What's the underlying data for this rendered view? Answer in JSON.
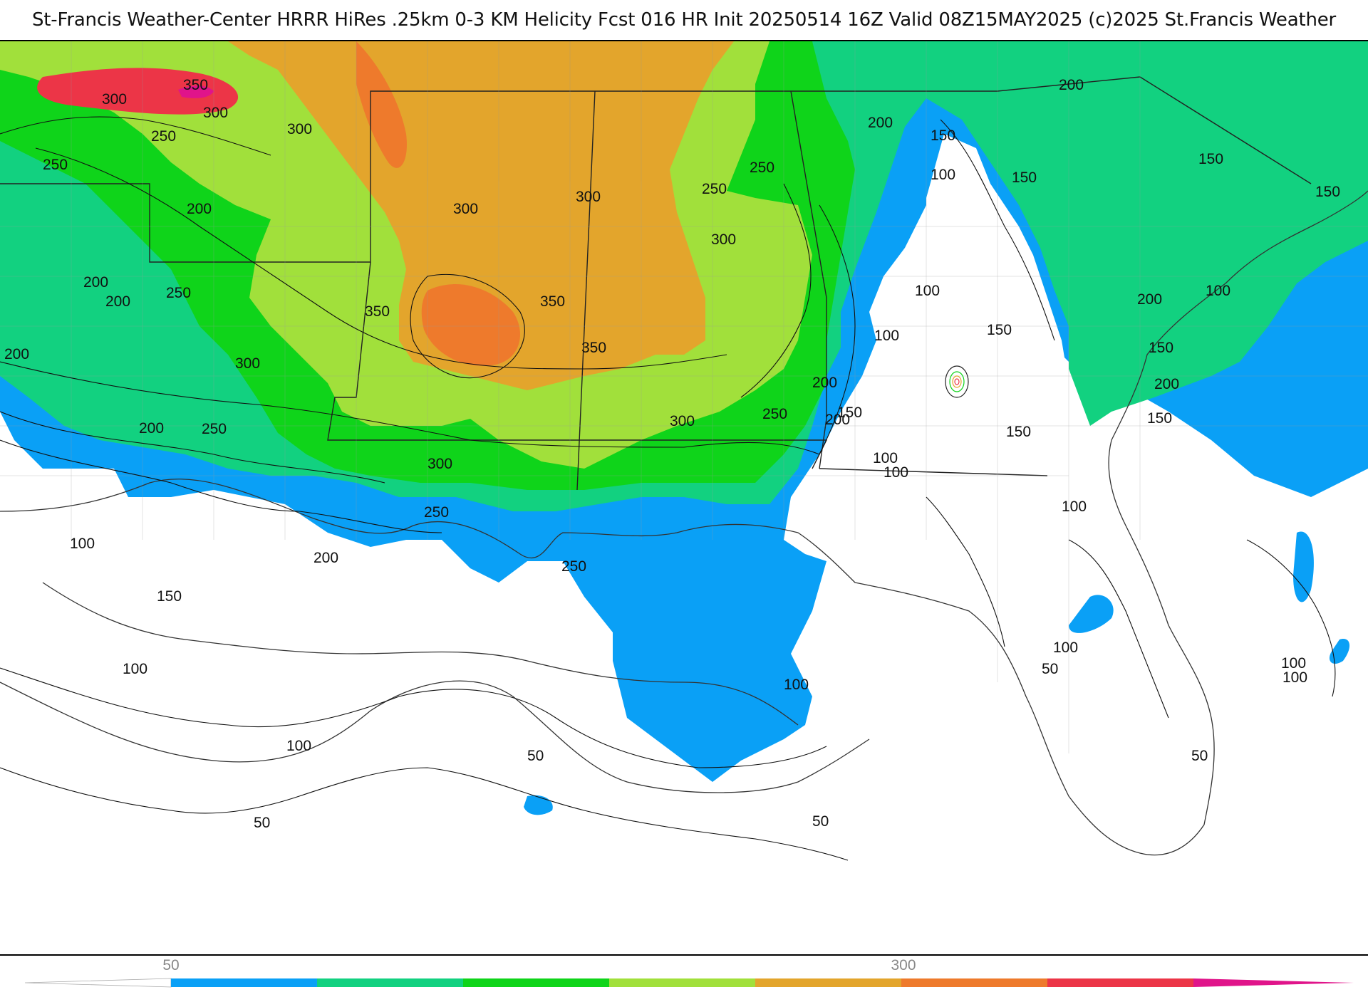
{
  "title": "St-Francis Weather-Center HRRR HiRes .25km 0-3 KM Helicity Fcst 016 HR Init 20250514 16Z  Valid 08Z15MAY2025    (c)2025 St.Francis Weather",
  "map": {
    "product": "0-3 KM Helicity",
    "contour_labels": [
      "350",
      "300",
      "300",
      "250",
      "250",
      "200",
      "300",
      "300",
      "200",
      "250",
      "200",
      "200",
      "250",
      "350",
      "350",
      "350",
      "300",
      "300",
      "250",
      "300",
      "200",
      "250",
      "200",
      "200",
      "150",
      "100",
      "150",
      "200",
      "150",
      "150",
      "100",
      "150",
      "100",
      "100",
      "200",
      "150",
      "150",
      "100",
      "300",
      "250",
      "300",
      "250",
      "200",
      "250",
      "200",
      "200",
      "150",
      "100",
      "100",
      "100",
      "150",
      "100",
      "100",
      "100",
      "50",
      "50",
      "50",
      "100",
      "150",
      "100",
      "100",
      "50",
      "50"
    ]
  },
  "colorbar": {
    "tick_labels": [
      "50",
      "300"
    ],
    "colors": [
      "#0aa0f6",
      "#12d180",
      "#0fd41a",
      "#a1e03b",
      "#e3a52c",
      "#ee7a2c",
      "#ec3547",
      "#e0148a"
    ]
  }
}
